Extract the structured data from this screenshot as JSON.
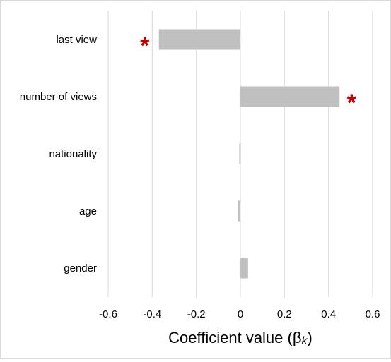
{
  "chart_data": {
    "type": "bar",
    "orientation": "horizontal",
    "categories": [
      "last view",
      "number of views",
      "nationality",
      "age",
      "gender"
    ],
    "values": [
      -0.37,
      0.45,
      -0.005,
      -0.012,
      0.035
    ],
    "significant": [
      true,
      true,
      false,
      false,
      false
    ],
    "significance_marker": "*",
    "xlabel": {
      "main": "Coefficient value (β",
      "subscript": "k",
      "close": ")"
    },
    "xlim": [
      -0.6,
      0.6
    ],
    "x_ticks": [
      -0.6,
      -0.4,
      -0.2,
      0,
      0.2,
      0.4,
      0.6
    ],
    "x_tick_labels": [
      "-0.6",
      "-0.4",
      "-0.2",
      "0",
      "0.2",
      "0.4",
      "0.6"
    ],
    "grid": "vertical",
    "colors": {
      "bar": "#c0c0c0",
      "grid": "#d9d9d9",
      "star": "#c00000"
    }
  }
}
